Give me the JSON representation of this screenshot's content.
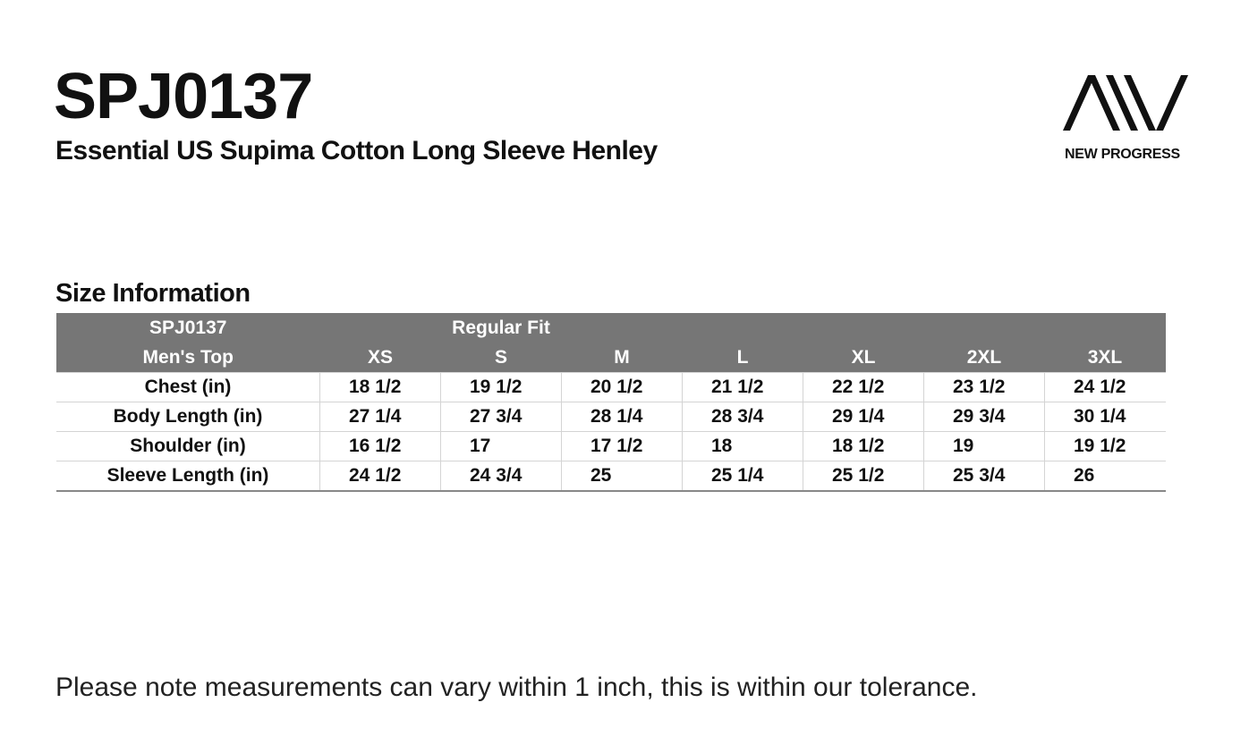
{
  "header": {
    "code": "SPJ0137",
    "subtitle": "Essential US Supima Cotton Long Sleeve Henley"
  },
  "brand": {
    "logo_icon": "aiv-logo",
    "name": "NEW PROGRESS"
  },
  "section_title": "Size Information",
  "table": {
    "header_row1": [
      "SPJ0137",
      "",
      "Regular Fit",
      "",
      "",
      "",
      "",
      ""
    ],
    "header_row2": [
      "Men's Top",
      "XS",
      "S",
      "M",
      "L",
      "XL",
      "2XL",
      "3XL"
    ],
    "rows": [
      [
        "Chest (in)",
        "18 1/2",
        "19 1/2",
        "20 1/2",
        "21 1/2",
        "22 1/2",
        "23 1/2",
        "24 1/2"
      ],
      [
        "Body Length (in)",
        "27 1/4",
        "27 3/4",
        "28 1/4",
        "28 3/4",
        "29 1/4",
        "29 3/4",
        "30 1/4"
      ],
      [
        "Shoulder (in)",
        "16 1/2",
        "17",
        "17 1/2",
        "18",
        "18 1/2",
        "19",
        "19 1/2"
      ],
      [
        "Sleeve Length (in)",
        "24 1/2",
        "24 3/4",
        "25",
        "25 1/4",
        "25 1/2",
        "25 3/4",
        "26"
      ]
    ],
    "header_color": "#767676"
  },
  "note": "Please note measurements can vary within 1 inch, this is within our tolerance."
}
